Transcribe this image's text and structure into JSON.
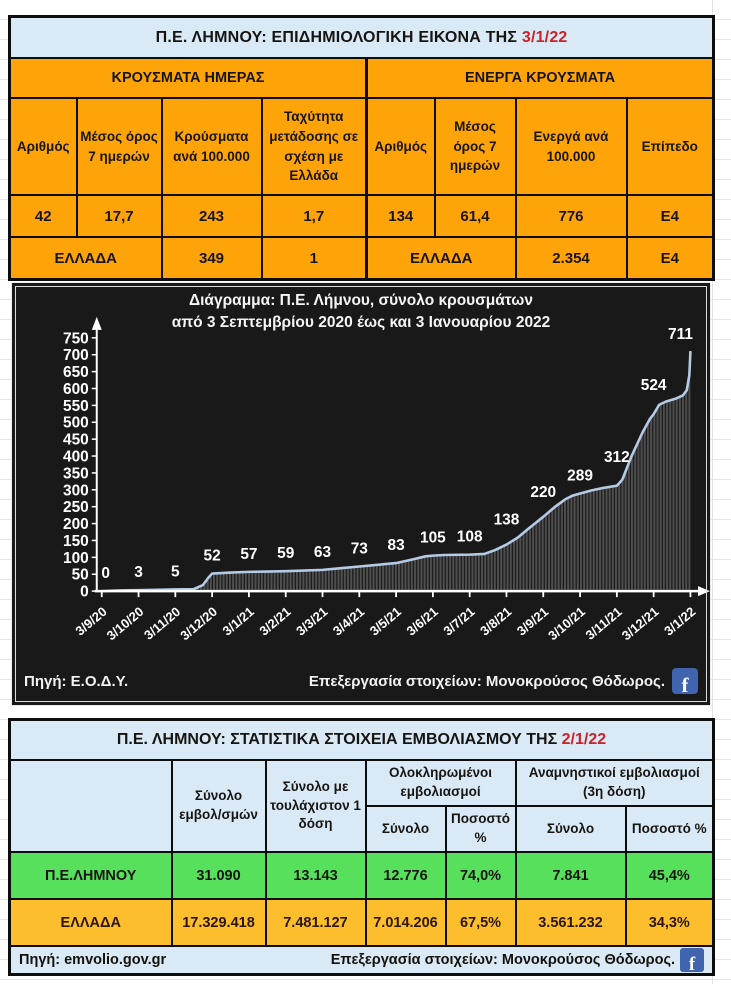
{
  "colors": {
    "orange": "#ffa408",
    "light_blue": "#d9eaf6",
    "green": "#57e05c",
    "amber": "#fcbe2d",
    "date_red": "#cc2129",
    "chart_bg": "#191919",
    "chart_line": "#b5cbe5",
    "chart_bar": "#4f4f4f",
    "facebook_blue": "#4064ad"
  },
  "epi_table": {
    "title_prefix": "Π.Ε. ΛΗΜΝΟΥ: ΕΠΙΔΗΜΙΟΛΟΓΙΚΗ ΕΙΚΟΝΑ ΤΗΣ ",
    "title_date": "3/1/22",
    "groups": [
      "ΚΡΟΥΣΜΑΤΑ ΗΜΕΡΑΣ",
      "ΕΝΕΡΓΑ ΚΡΟΥΣΜΑΤΑ"
    ],
    "columns": [
      "Αριθμός",
      "Μέσος όρος 7 ημερών",
      "Κρούσματα ανά 100.000",
      "Ταχύτητα μετάδοσης σε σχέση με Ελλάδα",
      "Αριθμός",
      "Μέσος όρος 7 ημερών",
      "Ενεργά ανά 100.000",
      "Επίπεδο"
    ],
    "row_limnos": [
      "42",
      "17,7",
      "243",
      "1,7",
      "134",
      "61,4",
      "776",
      "E4"
    ],
    "row_greece": {
      "label_left": "ΕΛΛΑΔΑ",
      "cases_per_100k": "349",
      "speed": "1",
      "label_right": "ΕΛΛΑΔΑ",
      "active_per_100k": "2.354",
      "level": "E4"
    }
  },
  "chart": {
    "title_line1": "Διάγραμμα:  Π.Ε. Λήμνου, σύνολο κρουσμάτων",
    "title_line2": "από 3 Σεπτεμβρίου 2020 έως και 3 Ιανουαρίου 2022",
    "source": "Πηγή: Ε.Ο.Δ.Υ.",
    "credit": "Επεξεργασία  στοιχείων: Μονοκρούσος Θόδωρος.",
    "facebook_glyph": "f"
  },
  "chart_data": {
    "type": "area",
    "title": "Διάγραμμα: Π.Ε. Λήμνου, σύνολο κρουσμάτων από 3 Σεπτεμβρίου 2020 έως και 3 Ιανουαρίου 2022",
    "x": [
      "3/9/20",
      "3/10/20",
      "3/11/20",
      "3/12/20",
      "3/1/21",
      "3/2/21",
      "3/3/21",
      "3/4/21",
      "3/5/21",
      "3/6/21",
      "3/7/21",
      "3/8/21",
      "3/9/21",
      "3/10/21",
      "3/11/21",
      "3/12/21",
      "3/1/22"
    ],
    "values": [
      0,
      3,
      5,
      52,
      57,
      59,
      63,
      73,
      83,
      105,
      108,
      138,
      220,
      289,
      312,
      524,
      711
    ],
    "ylim": [
      0,
      750
    ],
    "ytick_step": 50,
    "grid": false,
    "legend": "none",
    "curve_profile": [
      [
        0,
        0
      ],
      [
        0.5,
        2
      ],
      [
        1,
        3
      ],
      [
        2,
        5
      ],
      [
        2.5,
        6
      ],
      [
        2.75,
        18
      ],
      [
        2.9,
        40
      ],
      [
        3,
        52
      ],
      [
        3.5,
        55
      ],
      [
        4,
        57
      ],
      [
        5,
        59
      ],
      [
        6,
        63
      ],
      [
        6.5,
        68
      ],
      [
        7,
        73
      ],
      [
        7.5,
        78
      ],
      [
        8,
        83
      ],
      [
        8.5,
        95
      ],
      [
        8.8,
        103
      ],
      [
        9,
        105
      ],
      [
        9.3,
        107
      ],
      [
        10,
        108
      ],
      [
        10.4,
        110
      ],
      [
        10.7,
        122
      ],
      [
        11,
        138
      ],
      [
        11.3,
        158
      ],
      [
        11.6,
        185
      ],
      [
        12,
        220
      ],
      [
        12.3,
        248
      ],
      [
        12.6,
        272
      ],
      [
        12.8,
        283
      ],
      [
        13,
        289
      ],
      [
        13.3,
        298
      ],
      [
        13.6,
        305
      ],
      [
        14,
        312
      ],
      [
        14.15,
        330
      ],
      [
        14.4,
        400
      ],
      [
        14.7,
        470
      ],
      [
        14.9,
        510
      ],
      [
        15,
        524
      ],
      [
        15.15,
        552
      ],
      [
        15.35,
        562
      ],
      [
        15.6,
        570
      ],
      [
        15.8,
        580
      ],
      [
        15.9,
        595
      ],
      [
        15.97,
        640
      ],
      [
        16,
        711
      ]
    ]
  },
  "vax_table": {
    "title_prefix": "Π.Ε. ΛΗΜΝΟΥ: ΣΤΑΤΙΣΤΙΚΑ ΣΤΟΙΧΕΙΑ ΕΜΒΟΛΙΑΣΜΟΥ ΤΗΣ ",
    "title_date": "2/1/22",
    "col_total": "Σύνολο εμβολ/σμών",
    "col_first_dose": "Σύνολο με τουλάχιστον 1 δόση",
    "grp_completed": "Ολοκληρωμένοι εμβολιασμοί",
    "grp_booster": "Αναμνηστικοί εμβολιασμοί (3η δόση)",
    "sub_completed": [
      "Σύνολο",
      "Ποσοστό %"
    ],
    "sub_booster": [
      "Σύνολο",
      "Ποσοστό %"
    ],
    "rows": [
      {
        "label": "Π.Ε.ΛΗΜΝΟΥ",
        "total": "31.090",
        "first": "13.143",
        "comp_total": "12.776",
        "comp_pct": "74,0%",
        "boost_total": "7.841",
        "boost_pct": "45,4%"
      },
      {
        "label": "ΕΛΛΑΔΑ",
        "total": "17.329.418",
        "first": "7.481.127",
        "comp_total": "7.014.206",
        "comp_pct": "67,5%",
        "boost_total": "3.561.232",
        "boost_pct": "34,3%"
      }
    ],
    "source": "Πηγή: emvolio.gov.gr",
    "credit": "Επεξεργασία στοιχείων: Μονοκρούσος Θόδωρος.",
    "facebook_glyph": "f"
  }
}
